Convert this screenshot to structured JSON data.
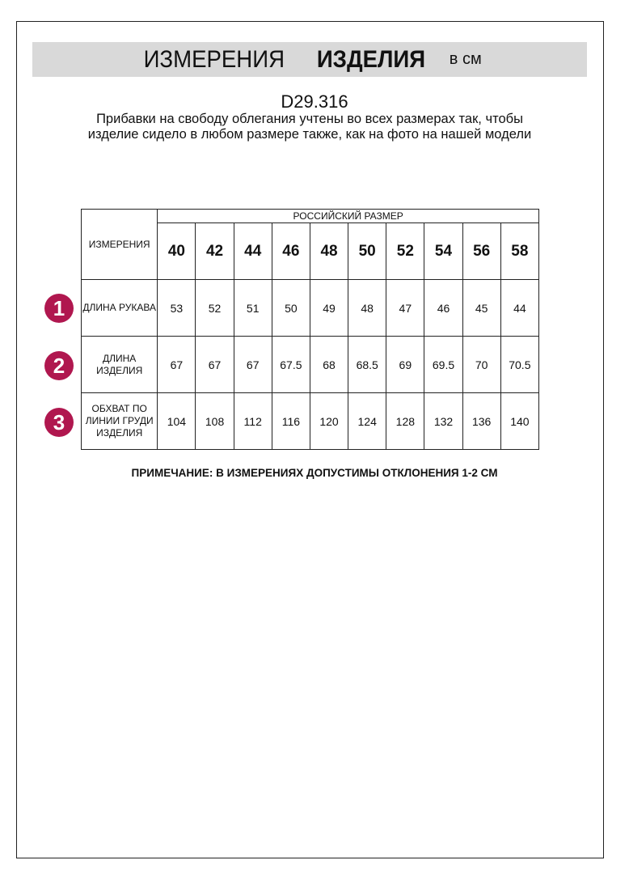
{
  "header": {
    "title_regular": "ИЗМЕРЕНИЯ",
    "title_bold": "ИЗДЕЛИЯ",
    "unit": "в см"
  },
  "article": "D29.316",
  "description": "Прибавки на свободу облегания учтены во всех размерах так, чтобы изделие сидело в любом размере также, как на фото на нашей модели",
  "table": {
    "measure_header": "ИЗМЕРЕНИЯ",
    "size_header": "РОССИЙСКИЙ РАЗМЕР",
    "sizes": [
      "40",
      "42",
      "44",
      "46",
      "48",
      "50",
      "52",
      "54",
      "56",
      "58"
    ],
    "rows": [
      {
        "number": "1",
        "label": "ДЛИНА РУКАВА",
        "values": [
          "53",
          "52",
          "51",
          "50",
          "49",
          "48",
          "47",
          "46",
          "45",
          "44"
        ]
      },
      {
        "number": "2",
        "label": "ДЛИНА ИЗДЕЛИЯ",
        "values": [
          "67",
          "67",
          "67",
          "67.5",
          "68",
          "68.5",
          "69",
          "69.5",
          "70",
          "70.5"
        ]
      },
      {
        "number": "3",
        "label": "ОБХВАТ ПО ЛИНИИ ГРУДИ ИЗДЕЛИЯ",
        "values": [
          "104",
          "108",
          "112",
          "116",
          "120",
          "124",
          "128",
          "132",
          "136",
          "140"
        ]
      }
    ]
  },
  "note": "ПРИМЕЧАНИЕ: В ИЗМЕРЕНИЯХ ДОПУСТИМЫ ОТКЛОНЕНИЯ 1-2 СМ",
  "colors": {
    "badge": "#b0174f",
    "band": "#d9d9d9"
  }
}
